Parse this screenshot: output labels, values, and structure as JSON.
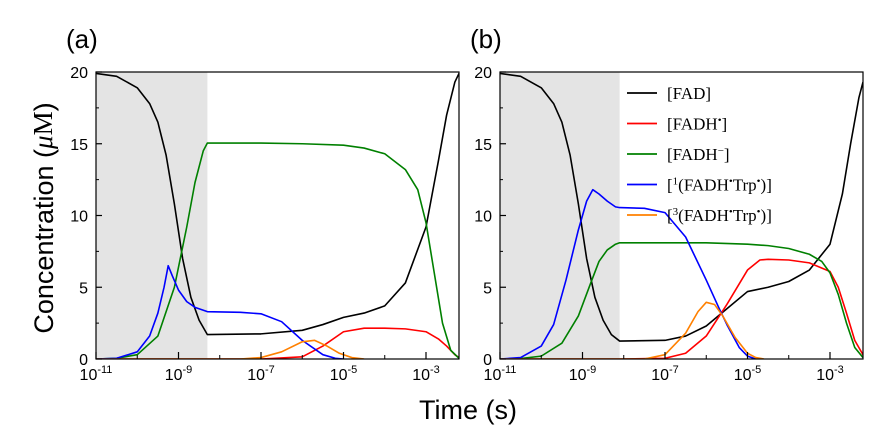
{
  "figure": {
    "ylabel_prefix": "Concentration (",
    "ylabel_mu": "μ",
    "ylabel_unit": "M",
    "ylabel_suffix": ")",
    "xlabel": "Time (s)"
  },
  "chart_data": [
    {
      "type": "line",
      "panel_label": "(a)",
      "xscale": "log",
      "xlim_exp": [
        -11,
        -2.2
      ],
      "ylim": [
        0,
        20
      ],
      "xticks_base": "10",
      "xticks_exp": [
        "-11",
        "-9",
        "-7",
        "-5",
        "-3"
      ],
      "yticks": [
        "0",
        "5",
        "10",
        "15",
        "20"
      ],
      "shaded_region_exp": [
        -11,
        -8.3
      ],
      "shaded_color": "#e4e4e4",
      "series": [
        {
          "name": "[FAD]",
          "color": "#000000",
          "x": [
            -11,
            -10.5,
            -10,
            -9.7,
            -9.5,
            -9.3,
            -9.1,
            -8.9,
            -8.7,
            -8.5,
            -8.3,
            -7,
            -6,
            -5.5,
            -5,
            -4.5,
            -4,
            -3.5,
            -3,
            -2.7,
            -2.5,
            -2.3,
            -2.2
          ],
          "y": [
            19.9,
            19.7,
            18.9,
            17.8,
            16.5,
            14.2,
            10.8,
            7.0,
            4.3,
            2.7,
            1.7,
            1.75,
            2.0,
            2.4,
            2.9,
            3.2,
            3.7,
            5.3,
            9.2,
            13.8,
            17.0,
            19.3,
            19.9
          ]
        },
        {
          "name": "[FADH•]",
          "color": "#ff0000",
          "x": [
            -11,
            -8.3,
            -7,
            -6,
            -5.5,
            -5,
            -4.5,
            -4,
            -3.5,
            -3,
            -2.7,
            -2.5,
            -2.3,
            -2.2
          ],
          "y": [
            0,
            0,
            0.0,
            0.15,
            0.9,
            1.9,
            2.15,
            2.15,
            2.1,
            1.9,
            1.4,
            0.9,
            0.3,
            0.1
          ]
        },
        {
          "name": "[FADH−]",
          "color": "#008000",
          "x": [
            -11,
            -10.5,
            -10,
            -9.5,
            -9.1,
            -8.8,
            -8.6,
            -8.4,
            -8.3,
            -7,
            -6,
            -5,
            -4.5,
            -4,
            -3.5,
            -3.2,
            -3,
            -2.8,
            -2.6,
            -2.4,
            -2.2
          ],
          "y": [
            0,
            0.05,
            0.3,
            1.6,
            5.0,
            9.2,
            12.3,
            14.5,
            15.05,
            15.05,
            15.0,
            14.9,
            14.7,
            14.3,
            13.2,
            11.8,
            9.5,
            6.0,
            2.5,
            0.6,
            0.05
          ]
        },
        {
          "name": "[1(FADH•Trp•)]",
          "color": "#0000ff",
          "x": [
            -11,
            -10.5,
            -10,
            -9.7,
            -9.5,
            -9.35,
            -9.25,
            -9.15,
            -9.0,
            -8.8,
            -8.6,
            -8.3,
            -7.5,
            -7,
            -6.5,
            -6,
            -5.5,
            -5.2,
            -5.0
          ],
          "y": [
            0,
            0.05,
            0.5,
            1.6,
            3.2,
            5.0,
            6.5,
            5.8,
            4.8,
            4.0,
            3.6,
            3.3,
            3.25,
            3.15,
            2.6,
            1.3,
            0.3,
            0.05,
            0
          ]
        },
        {
          "name": "[3(FADH•Trp•)]",
          "color": "#ff8000",
          "x": [
            -11,
            -7.5,
            -7,
            -6.5,
            -6,
            -5.7,
            -5.4,
            -5.1,
            -4.8,
            -4.5
          ],
          "y": [
            0,
            0,
            0.1,
            0.5,
            1.2,
            1.3,
            0.9,
            0.4,
            0.1,
            0
          ]
        }
      ]
    },
    {
      "type": "line",
      "panel_label": "(b)",
      "xscale": "log",
      "xlim_exp": [
        -11,
        -2.2
      ],
      "ylim": [
        0,
        20
      ],
      "xticks_base": "10",
      "xticks_exp": [
        "-11",
        "-9",
        "-7",
        "-5",
        "-3"
      ],
      "yticks": [
        "0",
        "5",
        "10",
        "15",
        "20"
      ],
      "shaded_region_exp": [
        -11,
        -8.1
      ],
      "shaded_color": "#e4e4e4",
      "legend": {
        "position": "top-right",
        "entries": [
          {
            "text": "[FAD]",
            "color": "#000000",
            "parts": [
              {
                "t": "[FAD]"
              }
            ]
          },
          {
            "text": "[FADH•]",
            "color": "#ff0000",
            "parts": [
              {
                "t": "[FADH"
              },
              {
                "t": "•",
                "sup": true
              },
              {
                "t": "]"
              }
            ]
          },
          {
            "text": "[FADH−]",
            "color": "#008000",
            "parts": [
              {
                "t": "[FADH"
              },
              {
                "t": "−",
                "sup": true
              },
              {
                "t": "]"
              }
            ]
          },
          {
            "text": "[1(FADH•Trp•)]",
            "color": "#0000ff",
            "parts": [
              {
                "t": "["
              },
              {
                "t": "1",
                "sup": true
              },
              {
                "t": "(FADH"
              },
              {
                "t": "•",
                "sup": true
              },
              {
                "t": "Trp"
              },
              {
                "t": "•",
                "sup": true
              },
              {
                "t": ")]"
              }
            ]
          },
          {
            "text": "[3(FADH•Trp•)]",
            "color": "#ff8000",
            "parts": [
              {
                "t": "["
              },
              {
                "t": "3",
                "sup": true
              },
              {
                "t": "(FADH"
              },
              {
                "t": "•",
                "sup": true
              },
              {
                "t": "Trp"
              },
              {
                "t": "•",
                "sup": true
              },
              {
                "t": ")]"
              }
            ]
          }
        ]
      },
      "series": [
        {
          "name": "[FAD]",
          "color": "#000000",
          "x": [
            -11,
            -10.5,
            -10,
            -9.7,
            -9.5,
            -9.3,
            -9.1,
            -8.9,
            -8.7,
            -8.5,
            -8.3,
            -8.1,
            -7,
            -6.5,
            -6,
            -5.5,
            -5,
            -4.5,
            -4,
            -3.5,
            -3,
            -2.7,
            -2.5,
            -2.3,
            -2.2
          ],
          "y": [
            19.9,
            19.7,
            18.9,
            17.8,
            16.5,
            14.2,
            10.8,
            7.0,
            4.3,
            2.7,
            1.7,
            1.25,
            1.3,
            1.6,
            2.3,
            3.5,
            4.7,
            5.0,
            5.4,
            6.2,
            8.0,
            11.5,
            15.0,
            18.2,
            19.3
          ]
        },
        {
          "name": "[FADH•]",
          "color": "#ff0000",
          "x": [
            -11,
            -8.1,
            -7,
            -6.5,
            -6,
            -5.5,
            -5,
            -4.7,
            -4.5,
            -4,
            -3.5,
            -3,
            -2.8,
            -2.6,
            -2.4,
            -2.2
          ],
          "y": [
            0,
            0,
            0.05,
            0.4,
            1.6,
            3.8,
            6.2,
            6.9,
            6.95,
            6.9,
            6.7,
            6.1,
            5.0,
            3.2,
            1.3,
            0.3
          ]
        },
        {
          "name": "[FADH−]",
          "color": "#008000",
          "x": [
            -11,
            -10.5,
            -10,
            -9.5,
            -9.1,
            -8.8,
            -8.6,
            -8.4,
            -8.2,
            -8.1,
            -7,
            -6,
            -5,
            -4.5,
            -4,
            -3.5,
            -3.2,
            -3,
            -2.8,
            -2.6,
            -2.4,
            -2.2
          ],
          "y": [
            0,
            0.03,
            0.2,
            1.1,
            3.0,
            5.3,
            6.8,
            7.6,
            8.0,
            8.1,
            8.1,
            8.1,
            8.0,
            7.9,
            7.7,
            7.3,
            6.8,
            6.0,
            4.5,
            2.5,
            0.8,
            0.1
          ]
        },
        {
          "name": "[1(FADH•Trp•)]",
          "color": "#0000ff",
          "x": [
            -11,
            -10.5,
            -10,
            -9.7,
            -9.4,
            -9.1,
            -8.9,
            -8.75,
            -8.6,
            -8.4,
            -8.2,
            -8.1,
            -7.5,
            -7,
            -6.5,
            -6,
            -5.7,
            -5.5,
            -5.2,
            -5.0,
            -4.8
          ],
          "y": [
            0,
            0.1,
            0.9,
            2.4,
            5.5,
            9.0,
            11.0,
            11.8,
            11.5,
            11.0,
            10.6,
            10.55,
            10.5,
            10.2,
            8.5,
            5.5,
            3.6,
            2.4,
            0.8,
            0.2,
            0
          ]
        },
        {
          "name": "[3(FADH•Trp•)]",
          "color": "#ff8000",
          "x": [
            -11,
            -7.5,
            -7,
            -6.5,
            -6.2,
            -6.0,
            -5.8,
            -5.6,
            -5.3,
            -5.0,
            -4.8,
            -4.6
          ],
          "y": [
            0,
            0,
            0.3,
            1.8,
            3.3,
            3.95,
            3.8,
            3.0,
            1.5,
            0.4,
            0.1,
            0
          ]
        }
      ]
    }
  ]
}
